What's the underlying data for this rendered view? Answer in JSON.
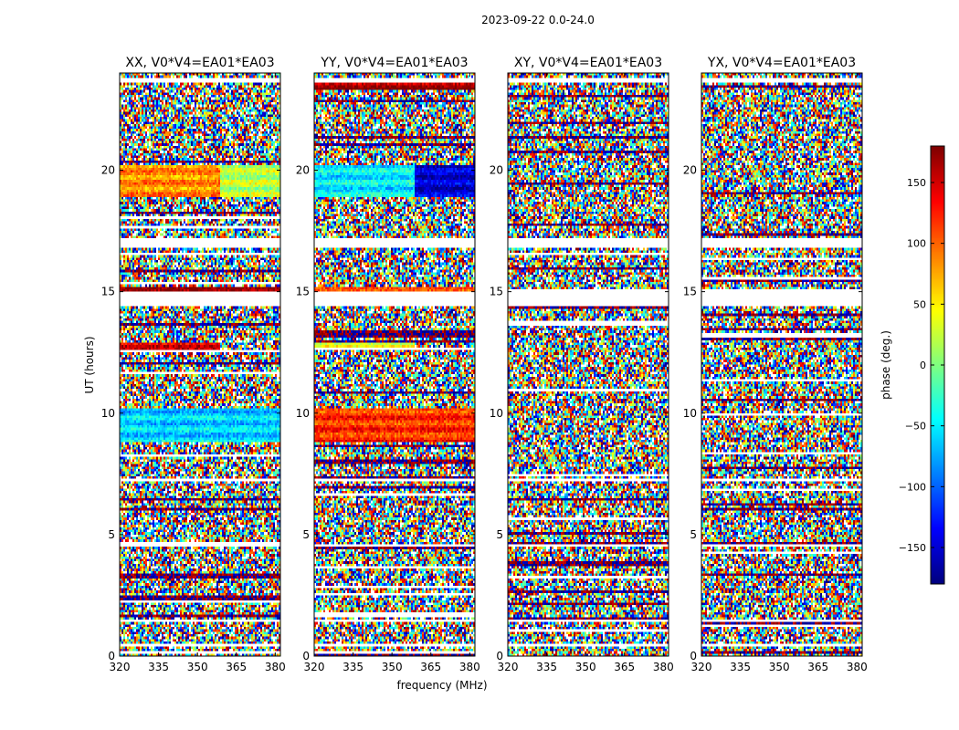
{
  "figure": {
    "suptitle": "2023-09-22 0.0-24.0",
    "xlabel": "frequency (MHz)",
    "ylabel": "UT (hours)"
  },
  "chart_data": {
    "type": "heatmap",
    "xlim": [
      320,
      382
    ],
    "ylim": [
      0,
      24
    ],
    "x_ticks": [
      320,
      335,
      350,
      365,
      380
    ],
    "y_ticks": [
      0,
      5,
      10,
      15,
      20
    ],
    "colormap": "jet",
    "clim": [
      -180,
      180
    ],
    "colorbar": {
      "label": "phase (deg.)",
      "ticks": [
        150,
        100,
        50,
        0,
        -50,
        -100,
        -150
      ],
      "tick_labels": [
        "150",
        "100",
        "50",
        "0",
        "−50",
        "−100",
        "−150"
      ]
    },
    "flagged_color": "#ffffff",
    "flagged_ut_ranges": [
      [
        14.45,
        15.0
      ],
      [
        16.85,
        17.15
      ],
      [
        23.6,
        23.8
      ],
      [
        0.45,
        0.55
      ],
      [
        1.4,
        1.5
      ],
      [
        4.5,
        4.6
      ],
      [
        7.2,
        7.3
      ]
    ],
    "panels": [
      {
        "title": "XX, V0*V4=EA01*EA03",
        "coherent_blocks": [
          {
            "ut": [
              18.9,
              20.2
            ],
            "freq": [
              320,
              359
            ],
            "phase": 85
          },
          {
            "ut": [
              18.9,
              20.2
            ],
            "freq": [
              359,
              382
            ],
            "phase": 20
          },
          {
            "ut": [
              12.6,
              12.9
            ],
            "freq": [
              320,
              359
            ],
            "phase": 140
          },
          {
            "ut": [
              8.8,
              10.2
            ],
            "freq": [
              320,
              382
            ],
            "phase": -60
          },
          {
            "ut": [
              15.0,
              15.15
            ],
            "freq": [
              320,
              382
            ],
            "phase": 160
          }
        ]
      },
      {
        "title": "YY, V0*V4=EA01*EA03",
        "coherent_blocks": [
          {
            "ut": [
              18.9,
              20.2
            ],
            "freq": [
              320,
              359
            ],
            "phase": -50
          },
          {
            "ut": [
              18.9,
              20.2
            ],
            "freq": [
              359,
              382
            ],
            "phase": -150
          },
          {
            "ut": [
              12.6,
              12.9
            ],
            "freq": [
              320,
              359
            ],
            "phase": 30
          },
          {
            "ut": [
              8.8,
              10.2
            ],
            "freq": [
              320,
              382
            ],
            "phase": 120
          },
          {
            "ut": [
              15.0,
              15.15
            ],
            "freq": [
              320,
              382
            ],
            "phase": 90
          },
          {
            "ut": [
              23.3,
              23.6
            ],
            "freq": [
              320,
              382
            ],
            "phase": 170
          }
        ]
      },
      {
        "title": "XY, V0*V4=EA01*EA03",
        "coherent_blocks": []
      },
      {
        "title": "YX, V0*V4=EA01*EA03",
        "coherent_blocks": []
      }
    ]
  }
}
